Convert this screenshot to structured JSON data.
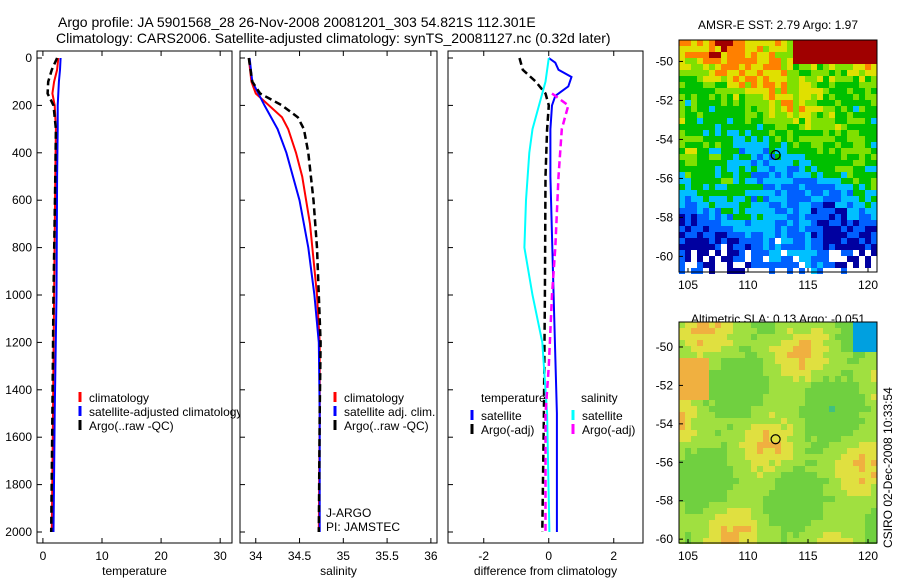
{
  "title_line1": "Argo profile: JA 5901568_28 26-Nov-2008 20081201_303 54.821S 112.301E",
  "title_line2": "Climatology: CARS2006. Satellite-adjusted climatology: synTS_20081127.nc (0.32d later)",
  "footer_stamp": "CSIRO 02-Dec-2008 10:33:54",
  "chart_data": [
    {
      "type": "line",
      "xlabel": "temperature",
      "ylabel": "",
      "xlim": [
        -1,
        32
      ],
      "ylim": [
        2050,
        0
      ],
      "xticks": [
        0,
        10,
        20,
        30
      ],
      "yticks": [
        0,
        200,
        400,
        600,
        800,
        1000,
        1200,
        1400,
        1600,
        1800,
        2000
      ],
      "legend": [
        "climatology",
        "satellite-adjusted climatology",
        "Argo(..raw -QC)"
      ],
      "series": [
        {
          "name": "climatology",
          "color": "#ff0000",
          "dash": false,
          "depth": [
            0,
            50,
            100,
            150,
            200,
            300,
            500,
            1000,
            1500,
            2000
          ],
          "values": [
            2.6,
            2.4,
            1.9,
            1.6,
            2.0,
            2.2,
            2.1,
            1.9,
            1.7,
            1.5
          ]
        },
        {
          "name": "satellite-adjusted climatology",
          "color": "#0000ff",
          "dash": false,
          "depth": [
            0,
            50,
            100,
            200,
            300,
            500,
            1000,
            1500,
            2000
          ],
          "values": [
            3.0,
            2.9,
            2.7,
            2.5,
            2.5,
            2.4,
            2.3,
            2.0,
            1.8
          ]
        },
        {
          "name": "Argo(..raw -QC)",
          "color": "#000000",
          "dash": true,
          "depth": [
            0,
            50,
            100,
            150,
            200,
            300,
            500,
            1000,
            1500,
            2000
          ],
          "values": [
            2.4,
            1.5,
            0.9,
            0.8,
            1.8,
            2.2,
            2.1,
            1.8,
            1.6,
            1.4
          ]
        }
      ],
      "annotations": []
    },
    {
      "type": "line",
      "xlabel": "salinity",
      "ylabel": "",
      "xlim": [
        33.82,
        36.07
      ],
      "ylim": [
        2050,
        0
      ],
      "xticks": [
        34,
        34.5,
        35,
        35.5,
        36
      ],
      "legend": [
        "climatology",
        "satellite adj. clim.",
        "Argo(..raw -QC)"
      ],
      "series": [
        {
          "name": "climatology",
          "color": "#ff0000",
          "dash": false,
          "depth": [
            0,
            100,
            150,
            200,
            250,
            300,
            400,
            500,
            700,
            1000,
            1200,
            1500,
            2000
          ],
          "values": [
            33.92,
            33.95,
            34.0,
            34.15,
            34.3,
            34.37,
            34.46,
            34.53,
            34.62,
            34.7,
            34.73,
            34.73,
            34.72
          ]
        },
        {
          "name": "satellite adj. clim.",
          "color": "#0000ff",
          "dash": false,
          "depth": [
            0,
            100,
            200,
            300,
            400,
            600,
            800,
            1000,
            1200,
            1500,
            2000
          ],
          "values": [
            33.93,
            33.96,
            34.1,
            34.25,
            34.35,
            34.5,
            34.6,
            34.67,
            34.72,
            34.73,
            34.73
          ]
        },
        {
          "name": "Argo(..raw -QC)",
          "color": "#000000",
          "dash": true,
          "depth": [
            0,
            100,
            150,
            200,
            250,
            300,
            400,
            600,
            800,
            1000,
            1200,
            1500,
            2000
          ],
          "values": [
            33.92,
            33.96,
            34.05,
            34.3,
            34.48,
            34.55,
            34.6,
            34.66,
            34.7,
            34.72,
            34.74,
            34.73,
            34.72
          ]
        }
      ],
      "annotations": [
        "J-ARGO",
        "PI: JAMSTEC"
      ]
    },
    {
      "type": "line",
      "xlabel": "difference from climatology",
      "ylabel": "",
      "xlim": [
        -3.1,
        2.9
      ],
      "ylim": [
        2050,
        0
      ],
      "xticks": [
        -2,
        0,
        2
      ],
      "legend_headers": [
        "temperature",
        "salinity"
      ],
      "legend": [
        "satellite",
        "Argo(-adj)",
        "satellite",
        "Argo(-adj)"
      ],
      "series": [
        {
          "name": "temperature satellite",
          "color": "#0000ff",
          "dash": false,
          "depth": [
            0,
            20,
            50,
            80,
            120,
            160,
            200,
            300,
            500,
            1000,
            1500,
            2000
          ],
          "values": [
            0.0,
            0.2,
            0.3,
            0.7,
            0.6,
            0.2,
            0.1,
            0.05,
            0.05,
            0.15,
            0.25,
            0.25
          ]
        },
        {
          "name": "temperature Argo(-adj)",
          "color": "#000000",
          "dash": true,
          "depth": [
            0,
            50,
            100,
            150,
            200,
            300,
            500,
            1000,
            1500,
            2000
          ],
          "values": [
            -0.9,
            -0.8,
            -0.4,
            -0.1,
            0.0,
            -0.05,
            -0.1,
            -0.12,
            -0.15,
            -0.2
          ]
        },
        {
          "name": "salinity satellite",
          "color": "#00ffff",
          "dash": false,
          "depth": [
            0,
            100,
            200,
            300,
            400,
            600,
            800,
            1000,
            1200,
            1500,
            2000
          ],
          "values": [
            0.0,
            -0.1,
            -0.3,
            -0.5,
            -0.6,
            -0.7,
            -0.75,
            -0.5,
            -0.2,
            -0.05,
            0.02
          ]
        },
        {
          "name": "salinity Argo(-adj)",
          "color": "#ff00ff",
          "dash": true,
          "depth": [
            150,
            200,
            250,
            300,
            500,
            800,
            1000,
            1300,
            1500,
            2000
          ],
          "values": [
            0.1,
            0.6,
            0.5,
            0.4,
            0.3,
            0.2,
            0.1,
            0.0,
            -0.1,
            -0.1
          ]
        }
      ],
      "annotations": []
    },
    {
      "type": "heatmap",
      "title": "AMSR-E SST: 2.79 Argo: 1.97",
      "xlim": [
        104.25,
        120.75
      ],
      "ylim": [
        -60.8,
        -48.9
      ],
      "xticks": [
        105,
        110,
        115,
        120
      ],
      "yticks": [
        -50,
        -52,
        -54,
        -56,
        -58,
        -60
      ],
      "marker": {
        "lon": 112.3,
        "lat": -54.8
      }
    },
    {
      "type": "heatmap",
      "title": "Altimetric SLA: 0.13 Argo: -0.051",
      "xlim": [
        104.25,
        120.75
      ],
      "ylim": [
        -60.2,
        -48.7
      ],
      "xticks": [
        105,
        110,
        115,
        120
      ],
      "yticks": [
        -50,
        -52,
        -54,
        -56,
        -58,
        -60
      ],
      "marker": {
        "lon": 112.3,
        "lat": -54.8
      }
    }
  ]
}
